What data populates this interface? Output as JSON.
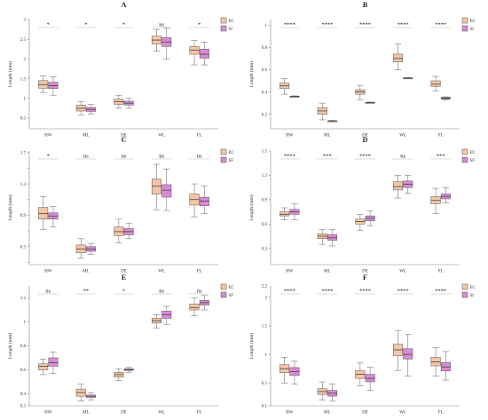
{
  "figure": {
    "ylabel": "Length (mm)"
  },
  "chart_data": [
    {
      "type": "box",
      "title": "A",
      "categories": [
        "HW",
        "ML",
        "DE",
        "WL",
        "FL"
      ],
      "ylabel": "Length (mm)",
      "ylim": [
        0.23,
        3.0
      ],
      "yticks": [
        0.5,
        1,
        1.5,
        2,
        2.5,
        3
      ],
      "ytick_labels": [
        "0.5",
        "1",
        "1.5",
        "2",
        "2.5",
        "3"
      ],
      "significance": [
        "*",
        "*",
        "*",
        "ns",
        "*"
      ],
      "legend": [
        {
          "name": "EC",
          "color": "#f5c6a5"
        },
        {
          "name": "SI",
          "color": "#d98ad6"
        }
      ],
      "series": [
        {
          "name": "EC",
          "color": "#f5c6a5",
          "boxes": [
            {
              "min": 1.15,
              "q1": 1.26,
              "median": 1.35,
              "q3": 1.45,
              "max": 1.57
            },
            {
              "min": 0.58,
              "q1": 0.68,
              "median": 0.75,
              "q3": 0.83,
              "max": 0.92
            },
            {
              "min": 0.75,
              "q1": 0.85,
              "median": 0.92,
              "q3": 0.98,
              "max": 1.08
            },
            {
              "min": 2.2,
              "q1": 2.38,
              "median": 2.48,
              "q3": 2.58,
              "max": 2.75
            },
            {
              "min": 1.85,
              "q1": 2.12,
              "median": 2.22,
              "q3": 2.32,
              "max": 2.47
            }
          ]
        },
        {
          "name": "SI",
          "color": "#d98ad6",
          "boxes": [
            {
              "min": 1.08,
              "q1": 1.25,
              "median": 1.32,
              "q3": 1.41,
              "max": 1.55
            },
            {
              "min": 0.6,
              "q1": 0.67,
              "median": 0.72,
              "q3": 0.77,
              "max": 0.85
            },
            {
              "min": 0.75,
              "q1": 0.83,
              "median": 0.88,
              "q3": 0.93,
              "max": 1.0
            },
            {
              "min": 2.0,
              "q1": 2.32,
              "median": 2.43,
              "q3": 2.54,
              "max": 2.78
            },
            {
              "min": 1.85,
              "q1": 2.02,
              "median": 2.12,
              "q3": 2.25,
              "max": 2.43
            }
          ]
        }
      ]
    },
    {
      "type": "box",
      "title": "B",
      "categories": [
        "HW",
        "ML",
        "DE",
        "WL",
        "FL"
      ],
      "ylabel": "Length (mm)",
      "ylim": [
        0.07,
        1.05
      ],
      "yticks": [
        0.2,
        0.4,
        0.6,
        0.8,
        1
      ],
      "ytick_labels": [
        "0.2",
        "0.4",
        "0.6",
        "0.8",
        "1"
      ],
      "significance": [
        "****",
        "****",
        "****",
        "****",
        "****"
      ],
      "legend": [
        {
          "name": "EC",
          "color": "#f5c6a5"
        },
        {
          "name": "SI",
          "color": "#d98ad6"
        }
      ],
      "series": [
        {
          "name": "EC",
          "color": "#f5c6a5",
          "boxes": [
            {
              "min": 0.38,
              "q1": 0.43,
              "median": 0.455,
              "q3": 0.48,
              "max": 0.52
            },
            {
              "min": 0.15,
              "q1": 0.2,
              "median": 0.23,
              "q3": 0.26,
              "max": 0.3
            },
            {
              "min": 0.33,
              "q1": 0.38,
              "median": 0.4,
              "q3": 0.42,
              "max": 0.46
            },
            {
              "min": 0.6,
              "q1": 0.67,
              "median": 0.7,
              "q3": 0.74,
              "max": 0.83
            },
            {
              "min": 0.41,
              "q1": 0.45,
              "median": 0.47,
              "q3": 0.5,
              "max": 0.54
            }
          ]
        },
        {
          "name": "SI",
          "color": "#d98ad6",
          "boxes": [
            {
              "min": 0.355,
              "q1": 0.358,
              "median": 0.36,
              "q3": 0.362,
              "max": 0.365
            },
            {
              "min": 0.135,
              "q1": 0.138,
              "median": 0.14,
              "q3": 0.142,
              "max": 0.145
            },
            {
              "min": 0.3,
              "q1": 0.303,
              "median": 0.305,
              "q3": 0.307,
              "max": 0.31
            },
            {
              "min": 0.52,
              "q1": 0.523,
              "median": 0.525,
              "q3": 0.527,
              "max": 0.53
            },
            {
              "min": 0.33,
              "q1": 0.335,
              "median": 0.345,
              "q3": 0.352,
              "max": 0.356
            }
          ]
        }
      ]
    },
    {
      "type": "box",
      "title": "C",
      "categories": [
        "HW",
        "ML",
        "DE",
        "WL",
        "FL"
      ],
      "ylabel": "Length (mm)",
      "ylim": [
        0.27,
        1.72
      ],
      "yticks": [
        0.3,
        0.5,
        0.7,
        0.9,
        1.1,
        1.3,
        1.5,
        1.7
      ],
      "ytick_labels": [
        "",
        "0.5",
        "",
        "0.9",
        "",
        "1.3",
        "",
        "1.7"
      ],
      "significance": [
        "*",
        "ns",
        "ns",
        "ns",
        "ns"
      ],
      "legend": [
        {
          "name": "EC",
          "color": "#f5c6a5"
        },
        {
          "name": "SF",
          "color": "#d98ad6"
        }
      ],
      "series": [
        {
          "name": "EC",
          "color": "#f5c6a5",
          "boxes": [
            {
              "min": 0.72,
              "q1": 0.85,
              "median": 0.92,
              "q3": 1.0,
              "max": 1.14
            },
            {
              "min": 0.35,
              "q1": 0.42,
              "median": 0.47,
              "q3": 0.52,
              "max": 0.6
            },
            {
              "min": 0.55,
              "q1": 0.64,
              "median": 0.69,
              "q3": 0.75,
              "max": 0.85
            },
            {
              "min": 0.97,
              "q1": 1.17,
              "median": 1.27,
              "q3": 1.36,
              "max": 1.55
            },
            {
              "min": 0.88,
              "q1": 1.03,
              "median": 1.1,
              "q3": 1.17,
              "max": 1.3
            }
          ]
        },
        {
          "name": "SF",
          "color": "#d98ad6",
          "boxes": [
            {
              "min": 0.75,
              "q1": 0.85,
              "median": 0.89,
              "q3": 0.93,
              "max": 1.01
            },
            {
              "min": 0.4,
              "q1": 0.44,
              "median": 0.47,
              "q3": 0.5,
              "max": 0.54
            },
            {
              "min": 0.6,
              "q1": 0.65,
              "median": 0.69,
              "q3": 0.73,
              "max": 0.8
            },
            {
              "min": 0.96,
              "q1": 1.13,
              "median": 1.22,
              "q3": 1.29,
              "max": 1.49
            },
            {
              "min": 0.92,
              "q1": 1.02,
              "median": 1.08,
              "q3": 1.13,
              "max": 1.27
            }
          ]
        }
      ]
    },
    {
      "type": "box",
      "title": "D",
      "categories": [
        "HW",
        "ML",
        "DE",
        "WL",
        "FL"
      ],
      "ylabel": "Length (mm)",
      "ylim": [
        0.1,
        1.5
      ],
      "yticks": [
        0.3,
        0.6,
        0.9,
        1.2,
        1.5
      ],
      "ytick_labels": [
        "0.3",
        "0.6",
        "0.9",
        "1.2",
        "1.5"
      ],
      "significance": [
        "****",
        "***",
        "****",
        "ns",
        "***"
      ],
      "legend": [
        {
          "name": "EC",
          "color": "#f5c6a5"
        },
        {
          "name": "SF",
          "color": "#d98ad6"
        }
      ],
      "series": [
        {
          "name": "EC",
          "color": "#f5c6a5",
          "boxes": [
            {
              "min": 0.65,
              "q1": 0.7,
              "median": 0.72,
              "q3": 0.75,
              "max": 0.8
            },
            {
              "min": 0.35,
              "q1": 0.42,
              "median": 0.45,
              "q3": 0.48,
              "max": 0.53
            },
            {
              "min": 0.52,
              "q1": 0.6,
              "median": 0.63,
              "q3": 0.66,
              "max": 0.72
            },
            {
              "min": 0.92,
              "q1": 1.02,
              "median": 1.06,
              "q3": 1.12,
              "max": 1.2
            },
            {
              "min": 0.73,
              "q1": 0.85,
              "median": 0.89,
              "q3": 0.94,
              "max": 1.04
            }
          ]
        },
        {
          "name": "SF",
          "color": "#d98ad6",
          "boxes": [
            {
              "min": 0.65,
              "q1": 0.72,
              "median": 0.75,
              "q3": 0.78,
              "max": 0.85
            },
            {
              "min": 0.33,
              "q1": 0.4,
              "median": 0.43,
              "q3": 0.47,
              "max": 0.53
            },
            {
              "min": 0.58,
              "q1": 0.64,
              "median": 0.67,
              "q3": 0.7,
              "max": 0.76
            },
            {
              "min": 0.98,
              "q1": 1.05,
              "median": 1.09,
              "q3": 1.13,
              "max": 1.2
            },
            {
              "min": 0.86,
              "q1": 0.91,
              "median": 0.94,
              "q3": 0.97,
              "max": 1.05
            }
          ]
        }
      ]
    },
    {
      "type": "box",
      "title": "E",
      "categories": [
        "HW",
        "ML",
        "DE",
        "WL",
        "FL"
      ],
      "ylabel": "Length (mm)",
      "ylim": [
        0.3,
        1.3
      ],
      "yticks": [
        0.3,
        0.4,
        0.6,
        0.8,
        1,
        1.2
      ],
      "ytick_labels": [
        "0.3",
        "0.4",
        "0.6",
        "0.8",
        "1",
        "1.2"
      ],
      "significance": [
        "ns",
        "**",
        "*",
        "ns",
        "ns"
      ],
      "legend": [
        {
          "name": "EC",
          "color": "#f5c6a5"
        },
        {
          "name": "SF",
          "color": "#d98ad6"
        }
      ],
      "series": [
        {
          "name": "EC",
          "color": "#f5c6a5",
          "boxes": [
            {
              "min": 0.56,
              "q1": 0.6,
              "median": 0.63,
              "q3": 0.65,
              "max": 0.69
            },
            {
              "min": 0.34,
              "q1": 0.38,
              "median": 0.41,
              "q3": 0.44,
              "max": 0.48
            },
            {
              "min": 0.51,
              "q1": 0.54,
              "median": 0.56,
              "q3": 0.58,
              "max": 0.61
            },
            {
              "min": 0.95,
              "q1": 0.99,
              "median": 1.01,
              "q3": 1.03,
              "max": 1.06
            },
            {
              "min": 1.05,
              "q1": 1.1,
              "median": 1.12,
              "q3": 1.15,
              "max": 1.2
            }
          ]
        },
        {
          "name": "SF",
          "color": "#d98ad6",
          "boxes": [
            {
              "min": 0.57,
              "q1": 0.63,
              "median": 0.66,
              "q3": 0.7,
              "max": 0.75
            },
            {
              "min": 0.35,
              "q1": 0.37,
              "median": 0.38,
              "q3": 0.39,
              "max": 0.41
            },
            {
              "min": 0.58,
              "q1": 0.595,
              "median": 0.6,
              "q3": 0.61,
              "max": 0.62
            },
            {
              "min": 0.98,
              "q1": 1.03,
              "median": 1.06,
              "q3": 1.09,
              "max": 1.13
            },
            {
              "min": 1.1,
              "q1": 1.14,
              "median": 1.16,
              "q3": 1.18,
              "max": 1.22
            }
          ]
        }
      ]
    },
    {
      "type": "box",
      "title": "F",
      "categories": [
        "HW",
        "ML",
        "DE",
        "WL",
        "FL"
      ],
      "ylabel": "Length (mm)",
      "ylim": [
        0.1,
        2.2
      ],
      "yticks": [
        0.1,
        0.5,
        1,
        1.5,
        2
      ],
      "ytick_labels": [
        "0.1",
        "0.5",
        "1",
        "1.5",
        "2"
      ],
      "extra_tick": {
        "value": 2.2,
        "label": "2.2"
      },
      "significance": [
        "****",
        "****",
        "****",
        "****",
        "****"
      ],
      "legend": [
        {
          "name": "EC",
          "color": "#f5c6a5"
        },
        {
          "name": "SI",
          "color": "#d98ad6"
        }
      ],
      "series": [
        {
          "name": "EC",
          "color": "#f5c6a5",
          "boxes": [
            {
              "min": 0.5,
              "q1": 0.68,
              "median": 0.75,
              "q3": 0.82,
              "max": 0.95
            },
            {
              "min": 0.2,
              "q1": 0.3,
              "median": 0.35,
              "q3": 0.4,
              "max": 0.52
            },
            {
              "min": 0.45,
              "q1": 0.58,
              "median": 0.65,
              "q3": 0.72,
              "max": 0.85
            },
            {
              "min": 0.72,
              "q1": 0.98,
              "median": 1.08,
              "q3": 1.18,
              "max": 1.42
            },
            {
              "min": 0.62,
              "q1": 0.8,
              "median": 0.87,
              "q3": 0.95,
              "max": 1.12
            }
          ]
        },
        {
          "name": "SI",
          "color": "#d98ad6",
          "boxes": [
            {
              "min": 0.48,
              "q1": 0.63,
              "median": 0.7,
              "q3": 0.77,
              "max": 0.88
            },
            {
              "min": 0.18,
              "q1": 0.27,
              "median": 0.32,
              "q3": 0.37,
              "max": 0.48
            },
            {
              "min": 0.37,
              "q1": 0.52,
              "median": 0.58,
              "q3": 0.65,
              "max": 0.78
            },
            {
              "min": 0.62,
              "q1": 0.92,
              "median": 1.0,
              "q3": 1.1,
              "max": 1.35
            },
            {
              "min": 0.55,
              "q1": 0.71,
              "median": 0.78,
              "q3": 0.86,
              "max": 1.05
            }
          ]
        }
      ]
    }
  ]
}
